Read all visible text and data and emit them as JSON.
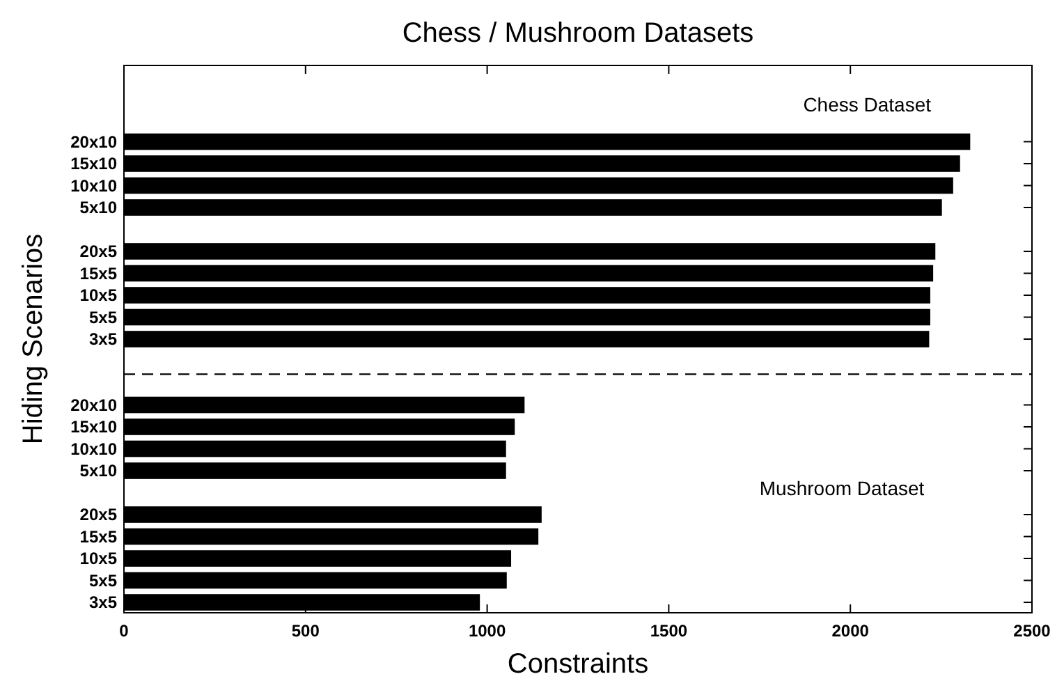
{
  "chart_data": {
    "type": "bar",
    "orientation": "horizontal",
    "title": "Chess / Mushroom Datasets",
    "xlabel": "Constraints",
    "ylabel": "Hiding Scenarios",
    "categories": [
      null,
      null,
      null,
      "20x10",
      "15x10",
      "10x10",
      "5x10",
      null,
      "20x5",
      "15x5",
      "10x5",
      "5x5",
      "3x5",
      null,
      null,
      "20x10",
      "15x10",
      "10x10",
      "5x10",
      null,
      "20x5",
      "15x5",
      "10x5",
      "5x5",
      "3x5"
    ],
    "values": [
      null,
      null,
      null,
      2330,
      2302,
      2283,
      2252,
      null,
      2234,
      2228,
      2220,
      2220,
      2217,
      null,
      null,
      1103,
      1076,
      1052,
      1052,
      null,
      1150,
      1141,
      1066,
      1054,
      980
    ],
    "color": "#000000",
    "xlim": [
      0,
      2500
    ],
    "xticks": [
      0,
      500,
      1000,
      1500,
      2000,
      2500
    ],
    "grid": false,
    "annotations": [
      "Chess Dataset",
      "Mushroom Dataset"
    ]
  }
}
